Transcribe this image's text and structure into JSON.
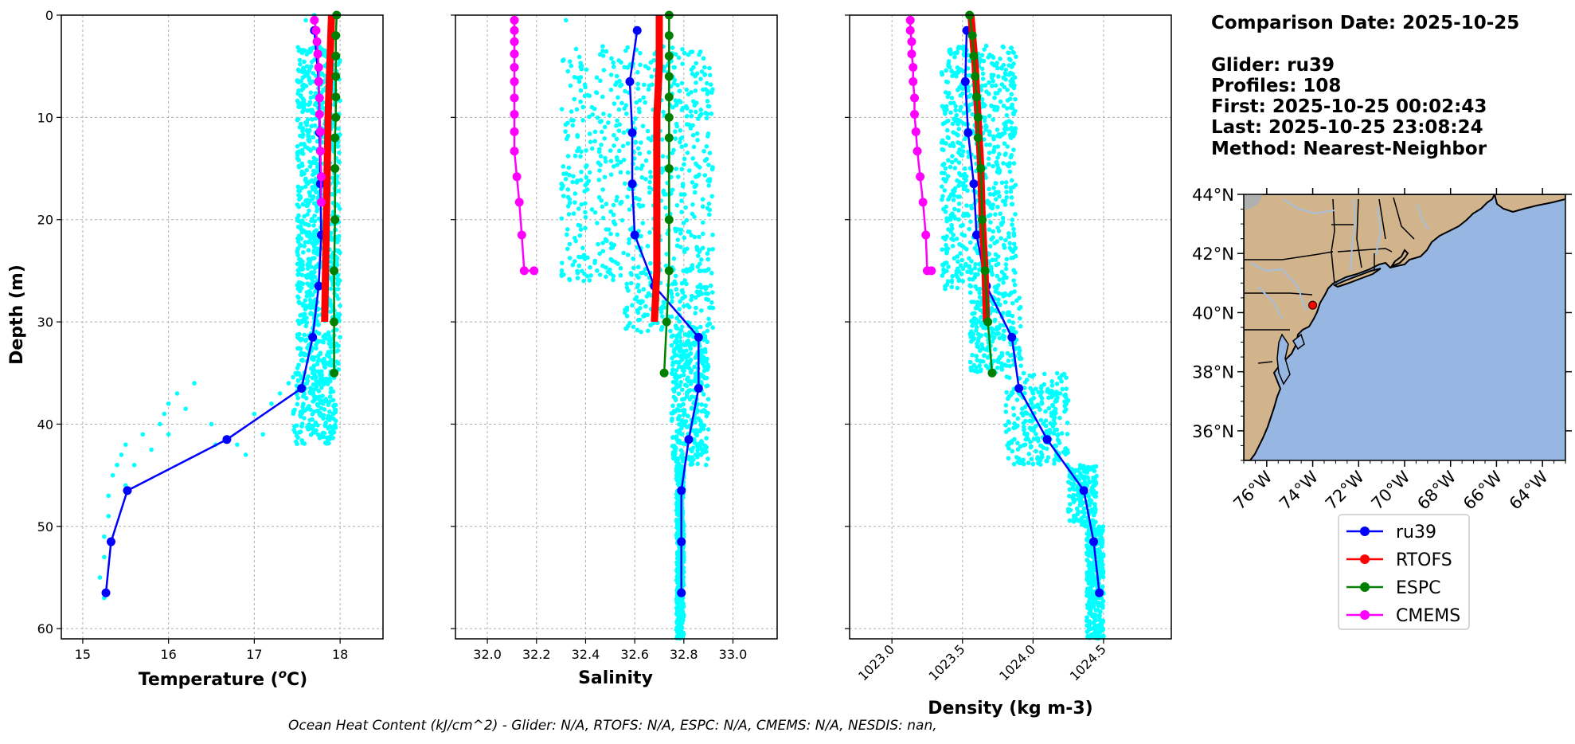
{
  "info": {
    "comparison_date": "Comparison Date: 2025-10-25",
    "glider": "Glider: ru39",
    "profiles": "Profiles: 108",
    "first": "First: 2025-10-25 00:02:43",
    "last": "Last: 2025-10-25 23:08:24",
    "method": "Method: Nearest-Neighbor"
  },
  "footer": "Ocean Heat Content (kJ/cm^2) - Glider: N/A,  RTOFS: N/A,  ESPC: N/A,  CMEMS: N/A,  NESDIS: nan,",
  "colors": {
    "ru39": "#0000ff",
    "RTOFS": "#ff0000",
    "ESPC": "#008000",
    "CMEMS": "#ff00ff",
    "glider_scatter": "#00ffff",
    "land": "#d2b48c",
    "ocean": "#97b6e1",
    "rivers": "#a5bfdd"
  },
  "chart_data": [
    {
      "type": "line",
      "xlabel": "Temperature (°C)",
      "ylabel": "Depth (m)",
      "xlim": [
        14.75,
        18.5
      ],
      "ylim": [
        61,
        0
      ],
      "xticks": [
        15,
        16,
        17,
        18
      ],
      "yticks": [
        0,
        10,
        20,
        30,
        40,
        50,
        60
      ],
      "grid": true,
      "scatter": {
        "name": "ru39 profiles",
        "color": "#00ffff",
        "bands": [
          {
            "depth_min": 3,
            "depth_max": 35,
            "x_min": 17.5,
            "x_max": 18.0
          },
          {
            "depth_min": 35,
            "depth_max": 42,
            "x_min": 17.45,
            "x_max": 17.95
          }
        ],
        "points": [
          [
            17.7,
            0
          ],
          [
            17.6,
            0.5
          ],
          [
            16.3,
            36
          ],
          [
            16.1,
            37
          ],
          [
            16.0,
            38
          ],
          [
            15.95,
            39
          ],
          [
            15.9,
            40
          ],
          [
            15.7,
            41
          ],
          [
            15.5,
            42
          ],
          [
            15.45,
            43
          ],
          [
            15.4,
            44
          ],
          [
            15.35,
            45
          ],
          [
            15.3,
            47
          ],
          [
            15.3,
            49
          ],
          [
            15.25,
            51
          ],
          [
            15.25,
            53
          ],
          [
            15.2,
            55
          ],
          [
            15.25,
            57
          ],
          [
            16.5,
            40
          ],
          [
            16.55,
            42
          ],
          [
            16.8,
            42
          ],
          [
            16.9,
            43
          ],
          [
            17.1,
            41
          ],
          [
            17.0,
            39
          ],
          [
            17.2,
            38
          ],
          [
            17.3,
            37
          ],
          [
            17.4,
            36
          ],
          [
            17.5,
            35
          ],
          [
            16.2,
            38.5
          ],
          [
            16.0,
            41
          ],
          [
            15.8,
            42.5
          ],
          [
            15.6,
            44
          ],
          [
            15.5,
            46
          ]
        ]
      },
      "series": [
        {
          "name": "ru39",
          "color": "#0000ff",
          "x": [
            17.7,
            17.75,
            17.76,
            17.77,
            17.78,
            17.75,
            17.68,
            17.55,
            16.68,
            15.52,
            15.33,
            15.27
          ],
          "y": [
            1.5,
            6.5,
            11.5,
            16.5,
            21.5,
            26.5,
            31.5,
            36.5,
            41.5,
            46.5,
            51.5,
            56.5
          ]
        },
        {
          "name": "RTOFS",
          "color": "#ff0000",
          "x": [
            17.9,
            17.88,
            17.86,
            17.85,
            17.84,
            17.83,
            17.82
          ],
          "y": [
            0,
            5,
            10,
            15,
            20,
            25,
            30
          ]
        },
        {
          "name": "ESPC",
          "color": "#008000",
          "x": [
            17.96,
            17.95,
            17.95,
            17.95,
            17.95,
            17.95,
            17.94,
            17.94,
            17.94,
            17.93,
            17.93,
            17.93
          ],
          "y": [
            0,
            2,
            4,
            6,
            8,
            10,
            12,
            15,
            20,
            25,
            30,
            35
          ]
        },
        {
          "name": "CMEMS",
          "color": "#ff00ff",
          "x": [
            17.7,
            17.72,
            17.73,
            17.74,
            17.75,
            17.75,
            17.76,
            17.76,
            17.77,
            17.77,
            17.78,
            17.78
          ],
          "y": [
            0.5,
            1.5,
            2.6,
            3.8,
            5.1,
            6.5,
            8.1,
            9.7,
            11.4,
            13.3,
            15.8,
            18.3
          ]
        }
      ]
    },
    {
      "type": "line",
      "xlabel": "Salinity",
      "ylabel": "",
      "xlim": [
        31.87,
        33.18
      ],
      "ylim": [
        61,
        0
      ],
      "xticks": [
        32.0,
        32.2,
        32.4,
        32.6,
        32.8,
        33.0
      ],
      "yticks": [
        0,
        10,
        20,
        30,
        40,
        50,
        60
      ],
      "grid": true,
      "scatter": {
        "name": "ru39 profiles",
        "color": "#00ffff",
        "bands": [
          {
            "depth_min": 3,
            "depth_max": 26,
            "x_min": 32.3,
            "x_max": 32.92
          },
          {
            "depth_min": 26,
            "depth_max": 31,
            "x_min": 32.55,
            "x_max": 32.92
          },
          {
            "depth_min": 31,
            "depth_max": 44,
            "x_min": 32.75,
            "x_max": 32.9
          },
          {
            "depth_min": 44,
            "depth_max": 61,
            "x_min": 32.77,
            "x_max": 32.8
          }
        ],
        "points": [
          [
            32.32,
            0.5
          ]
        ]
      },
      "series": [
        {
          "name": "ru39",
          "color": "#0000ff",
          "x": [
            32.61,
            32.58,
            32.59,
            32.59,
            32.6,
            32.68,
            32.86,
            32.86,
            32.82,
            32.79,
            32.79,
            32.79
          ],
          "y": [
            1.5,
            6.5,
            11.5,
            16.5,
            21.5,
            26.5,
            31.5,
            36.5,
            41.5,
            46.5,
            51.5,
            56.5
          ]
        },
        {
          "name": "RTOFS",
          "color": "#ff0000",
          "x": [
            32.7,
            32.7,
            32.69,
            32.69,
            32.69,
            32.69,
            32.68
          ],
          "y": [
            0,
            5,
            10,
            15,
            20,
            25,
            30
          ]
        },
        {
          "name": "ESPC",
          "color": "#008000",
          "x": [
            32.74,
            32.74,
            32.74,
            32.74,
            32.74,
            32.74,
            32.74,
            32.74,
            32.74,
            32.74,
            32.73,
            32.72
          ],
          "y": [
            0,
            2,
            4,
            6,
            8,
            10,
            12,
            15,
            20,
            25,
            30,
            35
          ]
        },
        {
          "name": "CMEMS",
          "color": "#ff00ff",
          "x": [
            32.11,
            32.11,
            32.11,
            32.11,
            32.11,
            32.11,
            32.11,
            32.11,
            32.11,
            32.11,
            32.12,
            32.13,
            32.14,
            32.15,
            32.19
          ],
          "y": [
            0.5,
            1.5,
            2.6,
            3.8,
            5.1,
            6.5,
            8.1,
            9.7,
            11.4,
            13.3,
            15.8,
            18.3,
            21.5,
            25,
            25
          ]
        }
      ]
    },
    {
      "type": "line",
      "xlabel": "Density (kg m-3)",
      "ylabel": "",
      "xlim": [
        1022.7,
        1024.98
      ],
      "ylim": [
        61,
        0
      ],
      "xticks": [
        1023.0,
        1023.5,
        1024.0,
        1024.5
      ],
      "yticks": [
        0,
        10,
        20,
        30,
        40,
        50,
        60
      ],
      "grid": true,
      "scatter": {
        "name": "ru39 profiles",
        "color": "#00ffff",
        "bands": [
          {
            "depth_min": 3,
            "depth_max": 27,
            "x_min": 1023.35,
            "x_max": 1023.88
          },
          {
            "depth_min": 27,
            "depth_max": 35,
            "x_min": 1023.55,
            "x_max": 1023.92
          },
          {
            "depth_min": 35,
            "depth_max": 44,
            "x_min": 1023.8,
            "x_max": 1024.25
          },
          {
            "depth_min": 44,
            "depth_max": 50,
            "x_min": 1024.25,
            "x_max": 1024.45
          },
          {
            "depth_min": 50,
            "depth_max": 61,
            "x_min": 1024.38,
            "x_max": 1024.5
          }
        ],
        "points": []
      },
      "series": [
        {
          "name": "ru39",
          "color": "#0000ff",
          "x": [
            1023.53,
            1023.52,
            1023.54,
            1023.58,
            1023.6,
            1023.67,
            1023.85,
            1023.9,
            1024.1,
            1024.36,
            1024.43,
            1024.47
          ],
          "y": [
            1.5,
            6.5,
            11.5,
            16.5,
            21.5,
            26.5,
            31.5,
            36.5,
            41.5,
            46.5,
            51.5,
            56.5
          ]
        },
        {
          "name": "RTOFS",
          "color": "#ff0000",
          "x": [
            1023.56,
            1023.59,
            1023.61,
            1023.63,
            1023.64,
            1023.66,
            1023.67
          ],
          "y": [
            0,
            5,
            10,
            15,
            20,
            25,
            30
          ]
        },
        {
          "name": "ESPC",
          "color": "#008000",
          "x": [
            1023.55,
            1023.57,
            1023.58,
            1023.59,
            1023.6,
            1023.61,
            1023.61,
            1023.63,
            1023.64,
            1023.66,
            1023.68,
            1023.71
          ],
          "y": [
            0,
            2,
            4,
            6,
            8,
            10,
            12,
            15,
            20,
            25,
            30,
            35
          ]
        },
        {
          "name": "CMEMS",
          "color": "#ff00ff",
          "x": [
            1023.13,
            1023.13,
            1023.14,
            1023.14,
            1023.15,
            1023.15,
            1023.16,
            1023.16,
            1023.17,
            1023.18,
            1023.2,
            1023.22,
            1023.24,
            1023.25,
            1023.28
          ],
          "y": [
            0.5,
            1.5,
            2.6,
            3.8,
            5.1,
            6.5,
            8.1,
            9.7,
            11.4,
            13.3,
            15.8,
            18.3,
            21.5,
            25,
            25
          ]
        }
      ]
    }
  ],
  "map": {
    "lat_ticks": [
      "36°N",
      "38°N",
      "40°N",
      "42°N",
      "44°N"
    ],
    "lon_ticks": [
      "76°W",
      "74°W",
      "72°W",
      "70°W",
      "68°W",
      "66°W",
      "64°W"
    ],
    "lon_range": [
      -77,
      -63
    ],
    "lat_range": [
      35,
      44
    ],
    "glider_position": {
      "lon": -74.0,
      "lat": 40.25
    }
  },
  "legend": {
    "entries": [
      "ru39",
      "RTOFS",
      "ESPC",
      "CMEMS"
    ]
  }
}
